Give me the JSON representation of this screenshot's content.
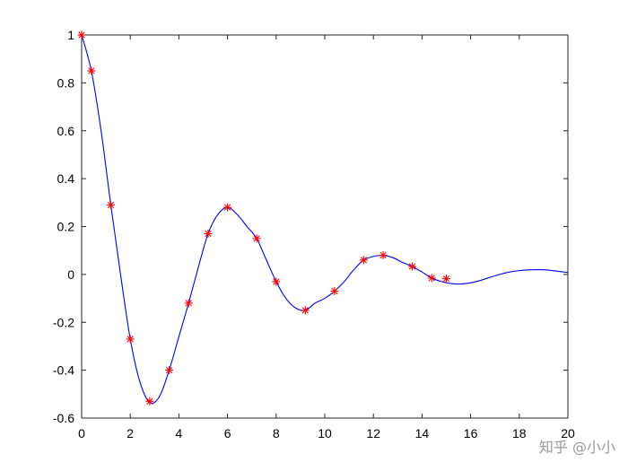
{
  "chart_data": {
    "type": "line",
    "title": "",
    "xlabel": "",
    "ylabel": "",
    "xlim": [
      0,
      20
    ],
    "ylim": [
      -0.6,
      1
    ],
    "xticks": [
      0,
      2,
      4,
      6,
      8,
      10,
      12,
      14,
      16,
      18,
      20
    ],
    "yticks": [
      -0.6,
      -0.4,
      -0.2,
      0,
      0.2,
      0.4,
      0.6,
      0.8,
      1
    ],
    "xtick_labels": [
      "0",
      "2",
      "4",
      "6",
      "8",
      "10",
      "12",
      "14",
      "16",
      "18",
      "20"
    ],
    "ytick_labels": [
      "-0.6",
      "-0.4",
      "-0.2",
      "0",
      "0.2",
      "0.4",
      "0.6",
      "0.8",
      "1"
    ],
    "grid": false,
    "series": [
      {
        "style": "line",
        "color": "#0000ff",
        "x": [
          0,
          0.4,
          0.8,
          1.2,
          1.6,
          2.0,
          2.4,
          2.8,
          3.2,
          3.6,
          4.0,
          4.4,
          4.8,
          5.2,
          5.6,
          6.0,
          6.4,
          6.8,
          7.2,
          7.6,
          8.0,
          8.4,
          8.8,
          9.2,
          9.6,
          10.0,
          10.4,
          10.8,
          11.2,
          11.6,
          12.0,
          12.4,
          12.8,
          13.2,
          13.6,
          14.0,
          14.4,
          14.8,
          15.2,
          15.6,
          16.0,
          16.4,
          16.8,
          17.2,
          17.6,
          18.0,
          18.4,
          18.8,
          19.2,
          19.6,
          20.0
        ],
        "y": [
          1.0,
          0.85,
          0.6,
          0.29,
          0.0,
          -0.27,
          -0.45,
          -0.535,
          -0.51,
          -0.4,
          -0.26,
          -0.12,
          0.03,
          0.17,
          0.25,
          0.28,
          0.25,
          0.2,
          0.15,
          0.06,
          -0.03,
          -0.1,
          -0.14,
          -0.15,
          -0.12,
          -0.1,
          -0.07,
          -0.03,
          0.02,
          0.06,
          0.075,
          0.08,
          0.07,
          0.05,
          0.033,
          0.01,
          -0.015,
          -0.03,
          -0.038,
          -0.04,
          -0.035,
          -0.025,
          -0.012,
          0.0,
          0.01,
          0.016,
          0.019,
          0.02,
          0.018,
          0.013,
          0.008
        ]
      },
      {
        "style": "markers",
        "marker": "asterisk",
        "color": "#ff0000",
        "x": [
          0,
          0.4,
          1.2,
          2.0,
          2.8,
          3.6,
          4.4,
          5.2,
          6.0,
          7.2,
          8.0,
          9.2,
          10.4,
          11.6,
          12.4,
          13.6,
          14.4,
          15.0
        ],
        "y": [
          1.0,
          0.85,
          0.29,
          -0.27,
          -0.53,
          -0.4,
          -0.12,
          0.17,
          0.28,
          0.15,
          -0.03,
          -0.15,
          -0.07,
          0.06,
          0.08,
          0.033,
          -0.015,
          -0.018
        ]
      }
    ]
  },
  "watermark": "知乎 @小小"
}
